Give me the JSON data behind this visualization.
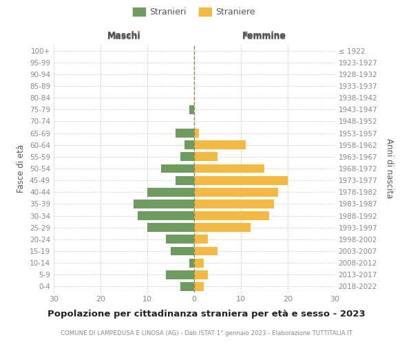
{
  "age_groups_bottom_to_top": [
    "0-4",
    "5-9",
    "10-14",
    "15-19",
    "20-24",
    "25-29",
    "30-34",
    "35-39",
    "40-44",
    "45-49",
    "50-54",
    "55-59",
    "60-64",
    "65-69",
    "70-74",
    "75-79",
    "80-84",
    "85-89",
    "90-94",
    "95-99",
    "100+"
  ],
  "birth_years_bottom_to_top": [
    "2018-2022",
    "2013-2017",
    "2008-2012",
    "2003-2007",
    "1998-2002",
    "1993-1997",
    "1988-1992",
    "1983-1987",
    "1978-1982",
    "1973-1977",
    "1968-1972",
    "1963-1967",
    "1958-1962",
    "1953-1957",
    "1948-1952",
    "1943-1947",
    "1938-1942",
    "1933-1937",
    "1928-1932",
    "1923-1927",
    "≤ 1922"
  ],
  "males_bottom_to_top": [
    3,
    6,
    1,
    5,
    6,
    10,
    12,
    13,
    10,
    4,
    7,
    3,
    2,
    4,
    0,
    1,
    0,
    0,
    0,
    0,
    0
  ],
  "females_bottom_to_top": [
    2,
    3,
    2,
    5,
    3,
    12,
    16,
    17,
    18,
    20,
    15,
    5,
    11,
    1,
    0,
    0,
    0,
    0,
    0,
    0,
    0
  ],
  "male_color": "#6e9c5e",
  "female_color": "#f5b942",
  "male_label": "Stranieri",
  "female_label": "Straniere",
  "title_main": "Popolazione per cittadinanza straniera per età e sesso - 2023",
  "title_sub": "COMUNE DI LAMPEDUSA E LINOSA (AG) - Dati ISTAT 1° gennaio 2023 - Elaborazione TUTTITALIA.IT",
  "header_left": "Maschi",
  "header_right": "Femmine",
  "ylabel_left": "Fasce di età",
  "ylabel_right": "Anni di nascita",
  "xlim": 30,
  "xticks": [
    30,
    20,
    10,
    0,
    10,
    20,
    30
  ],
  "background_color": "#ffffff",
  "grid_color": "#cccccc",
  "centerline_color": "#888855",
  "tick_color": "#888888",
  "label_color": "#555555",
  "title_color": "#222222"
}
